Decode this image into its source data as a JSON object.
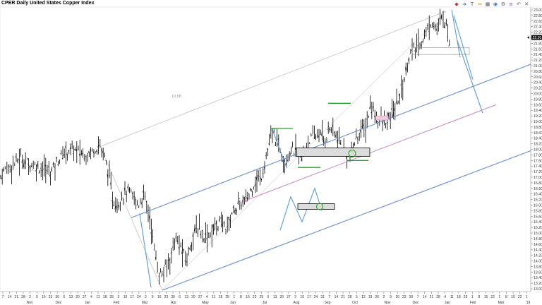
{
  "title": "CPER Daily United States Copper Index",
  "toolbar": {
    "icons": [
      "draw-icon",
      "arrow-icon",
      "text-icon",
      "measure-icon",
      "grid-icon",
      "alert-icon",
      "settings-icon",
      "layers-icon",
      "undo-icon",
      "close-icon"
    ],
    "glyphs": [
      "◆",
      "➜",
      "T",
      "↔",
      "▦",
      "◉",
      "⚙",
      "≡",
      "↶",
      "✕"
    ]
  },
  "annotation_text": "19.88",
  "colors": {
    "price": "#000000",
    "channel": "#6b8ccc",
    "pink_line": "#c07ac0",
    "green": "#2ca02c",
    "zone_fill": "#dcdcdc",
    "projection": "#5b9bd5",
    "gray_line": "#b0b0b0"
  },
  "chart_data": {
    "type": "ohlc",
    "title": "CPER Daily United States Copper Index",
    "ylim": [
      12.9,
      23.1
    ],
    "y_ticks": [
      "23.00",
      "22.80",
      "22.60",
      "22.40",
      "22.20",
      "22.00",
      "21.80",
      "21.60",
      "21.40",
      "21.20",
      "21.00",
      "20.80",
      "20.60",
      "20.40",
      "20.20",
      "20.00",
      "19.80",
      "19.60",
      "19.40",
      "19.20",
      "19.00",
      "18.80",
      "18.60",
      "18.40",
      "18.20",
      "18.00",
      "17.80",
      "17.60",
      "17.40",
      "17.20",
      "17.00",
      "16.80",
      "16.60",
      "16.40",
      "16.20",
      "16.00",
      "15.80",
      "15.60",
      "15.40",
      "15.20",
      "15.00",
      "14.80",
      "14.60",
      "14.40",
      "14.20",
      "14.00",
      "13.80",
      "13.60",
      "13.40",
      "13.20",
      "13.00"
    ],
    "current_price_label": "22.01",
    "x_tick_labels": [
      "7",
      "14",
      "21",
      "28",
      "2",
      "9",
      "16",
      "23",
      "30",
      "6",
      "13",
      "20",
      "27",
      "4",
      "11",
      "18",
      "25",
      "3",
      "10",
      "17",
      "24",
      "2",
      "9",
      "16",
      "23",
      "30",
      "6",
      "13",
      "20",
      "27",
      "4",
      "11",
      "18",
      "25",
      "1",
      "8",
      "15",
      "22",
      "29",
      "6",
      "13",
      "20",
      "27",
      "3",
      "10",
      "17",
      "24",
      "31",
      "7",
      "14",
      "21",
      "28",
      "5",
      "12",
      "19",
      "26",
      "2",
      "9",
      "16",
      "23",
      "30",
      "7",
      "14",
      "21",
      "28",
      "4",
      "11",
      "18",
      "25",
      "1",
      "8",
      "15",
      "22",
      "1",
      "8",
      "15",
      "22",
      "1"
    ],
    "month_labels": [
      "Nov",
      "Dec",
      "Jan",
      "Feb",
      "Mar",
      "Apr",
      "May",
      "Jun",
      "Jul",
      "Aug",
      "Sep",
      "Oct",
      "Nov",
      "Dec",
      "Jan",
      "Feb",
      "Mar"
    ],
    "last_year_label": "'19",
    "price_path": [
      [
        0,
        17.0
      ],
      [
        8,
        17.3
      ],
      [
        18,
        17.45
      ],
      [
        30,
        17.7
      ],
      [
        40,
        17.5
      ],
      [
        52,
        17.4
      ],
      [
        62,
        17.3
      ],
      [
        72,
        17.2
      ],
      [
        82,
        17.6
      ],
      [
        92,
        17.9
      ],
      [
        102,
        18.0
      ],
      [
        112,
        17.9
      ],
      [
        122,
        17.8
      ],
      [
        132,
        18.0
      ],
      [
        142,
        18.15
      ],
      [
        150,
        17.6
      ],
      [
        156,
        16.8
      ],
      [
        160,
        16.2
      ],
      [
        166,
        16.0
      ],
      [
        172,
        16.3
      ],
      [
        180,
        16.5
      ],
      [
        188,
        16.3
      ],
      [
        196,
        16.0
      ],
      [
        204,
        16.4
      ],
      [
        212,
        15.6
      ],
      [
        218,
        14.6
      ],
      [
        224,
        13.6
      ],
      [
        230,
        13.5
      ],
      [
        236,
        13.8
      ],
      [
        242,
        14.2
      ],
      [
        248,
        14.8
      ],
      [
        256,
        14.5
      ],
      [
        264,
        14.0
      ],
      [
        272,
        14.8
      ],
      [
        280,
        15.2
      ],
      [
        290,
        14.9
      ],
      [
        300,
        15.0
      ],
      [
        310,
        15.4
      ],
      [
        322,
        15.2
      ],
      [
        330,
        15.8
      ],
      [
        340,
        16.0
      ],
      [
        350,
        16.2
      ],
      [
        360,
        16.8
      ],
      [
        370,
        17.0
      ],
      [
        378,
        17.8
      ],
      [
        386,
        18.6
      ],
      [
        394,
        18.2
      ],
      [
        404,
        17.6
      ],
      [
        412,
        18.0
      ],
      [
        420,
        17.9
      ],
      [
        428,
        17.6
      ],
      [
        436,
        18.3
      ],
      [
        444,
        18.4
      ],
      [
        452,
        18.6
      ],
      [
        460,
        18.3
      ],
      [
        468,
        18.8
      ],
      [
        476,
        18.5
      ],
      [
        484,
        18.1
      ],
      [
        490,
        17.9
      ],
      [
        496,
        17.8
      ],
      [
        502,
        18.2
      ],
      [
        510,
        18.6
      ],
      [
        518,
        18.8
      ],
      [
        526,
        19.6
      ],
      [
        532,
        19.2
      ],
      [
        540,
        19.0
      ],
      [
        548,
        18.9
      ],
      [
        556,
        19.3
      ],
      [
        562,
        19.6
      ],
      [
        568,
        20.1
      ],
      [
        574,
        20.6
      ],
      [
        580,
        21.4
      ],
      [
        588,
        21.6
      ],
      [
        596,
        21.8
      ],
      [
        604,
        22.2
      ],
      [
        612,
        22.6
      ],
      [
        620,
        22.3
      ],
      [
        628,
        22.8
      ],
      [
        634,
        22.3
      ],
      [
        638,
        21.7
      ]
    ],
    "annotations": [
      {
        "type": "channel",
        "name": "upper-channel",
        "from": [
          "Feb",
          15.55
        ],
        "to": [
          "Feb-next",
          21.05
        ]
      },
      {
        "type": "channel",
        "name": "lower-channel",
        "from": [
          "Mar",
          12.95
        ],
        "to": [
          "Feb-next",
          17.95
        ]
      },
      {
        "type": "trendline",
        "name": "mid-line",
        "from": [
          "Jun",
          16.05
        ],
        "to": [
          "Feb-next",
          19.6
        ]
      },
      {
        "type": "projection",
        "name": "forecast-drop",
        "from": [
          "Jan",
          22.9
        ],
        "to": [
          "Feb",
          19.3
        ]
      }
    ]
  }
}
